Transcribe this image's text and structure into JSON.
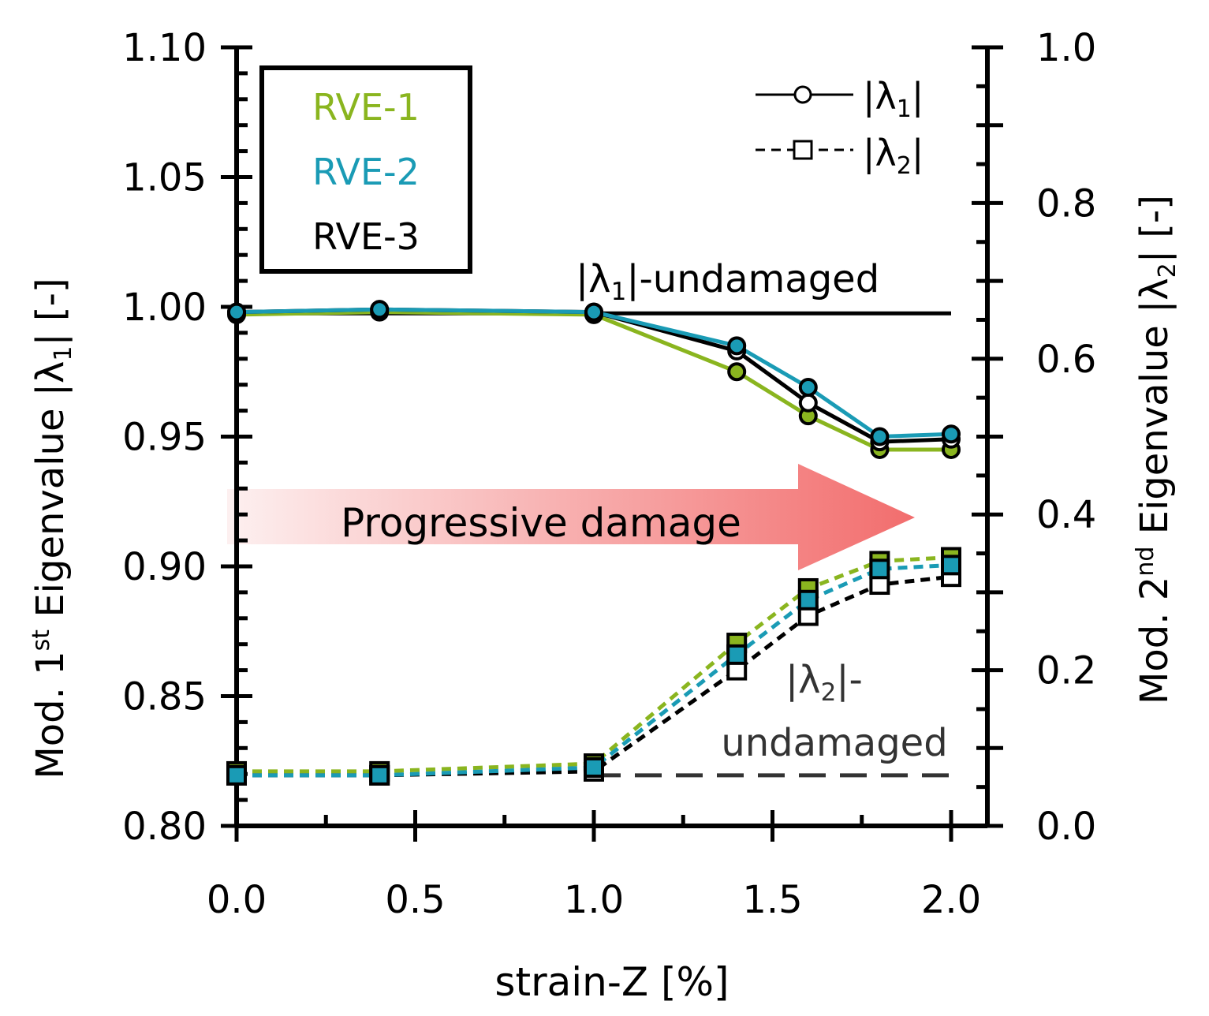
{
  "chart_data": {
    "type": "line",
    "xlabel": "strain-Z [%]",
    "xlim": [
      0.0,
      2.1
    ],
    "x_ticks": [
      0.0,
      0.5,
      1.0,
      1.5,
      2.0
    ],
    "x_tick_labels": [
      "0.0",
      "0.5",
      "1.0",
      "1.5",
      "2.0"
    ],
    "left_axis": {
      "label_prefix": "Mod. 1",
      "label_sup": "st",
      "label_suffix": " Eigenvalue  |λ",
      "label_sub": "1",
      "label_end": "|  [-]",
      "ylim": [
        0.8,
        1.1
      ],
      "ticks": [
        0.8,
        0.85,
        0.9,
        0.95,
        1.0,
        1.05,
        1.1
      ],
      "tick_labels": [
        "0.80",
        "0.85",
        "0.90",
        "0.95",
        "1.00",
        "1.05",
        "1.10"
      ]
    },
    "right_axis": {
      "label_prefix": "Mod. 2",
      "label_sup": "nd",
      "label_suffix": " Eigenvalue  |λ",
      "label_sub": "2",
      "label_end": "|  [-]",
      "ylim": [
        0.0,
        1.0
      ],
      "ticks": [
        0.0,
        0.2,
        0.4,
        0.6,
        0.8,
        1.0
      ],
      "tick_labels": [
        "0.0",
        "0.2",
        "0.4",
        "0.6",
        "0.8",
        "1.0"
      ]
    },
    "x": [
      0.0,
      0.4,
      1.0,
      1.4,
      1.6,
      1.8,
      2.0
    ],
    "series": [
      {
        "name": "RVE-1 |λ1|",
        "rve": "RVE-1",
        "axis": "left",
        "marker": "circle",
        "line": "solid",
        "color": "#8ab51f",
        "fill": "#8ab51f",
        "values": [
          0.997,
          0.998,
          0.997,
          0.975,
          0.958,
          0.945,
          0.945
        ]
      },
      {
        "name": "RVE-3 |λ1|",
        "rve": "RVE-3",
        "axis": "left",
        "marker": "circle",
        "line": "solid",
        "color": "#000000",
        "fill": "#ffffff",
        "values": [
          0.998,
          0.999,
          0.998,
          0.983,
          0.963,
          0.948,
          0.949
        ]
      },
      {
        "name": "RVE-2 |λ1|",
        "rve": "RVE-2",
        "axis": "left",
        "marker": "circle",
        "line": "solid",
        "color": "#1a9bb5",
        "fill": "#1a9bb5",
        "values": [
          0.998,
          0.999,
          0.998,
          0.985,
          0.969,
          0.95,
          0.951
        ]
      },
      {
        "name": "RVE-1 |λ2|",
        "rve": "RVE-1",
        "axis": "right",
        "marker": "square",
        "line": "dashed",
        "color": "#8ab51f",
        "fill": "#8ab51f",
        "values": [
          0.07,
          0.07,
          0.08,
          0.235,
          0.305,
          0.34,
          0.345
        ]
      },
      {
        "name": "RVE-3 |λ2|",
        "rve": "RVE-3",
        "axis": "right",
        "marker": "square",
        "line": "dashed",
        "color": "#000000",
        "fill": "#ffffff",
        "values": [
          0.065,
          0.065,
          0.07,
          0.2,
          0.27,
          0.31,
          0.32
        ]
      },
      {
        "name": "RVE-2 |λ2|",
        "rve": "RVE-2",
        "axis": "right",
        "marker": "square",
        "line": "dashed",
        "color": "#1a9bb5",
        "fill": "#1a9bb5",
        "values": [
          0.065,
          0.065,
          0.075,
          0.22,
          0.29,
          0.33,
          0.335
        ]
      }
    ],
    "reference_lines": [
      {
        "name": "|λ1|-undamaged",
        "axis": "left",
        "value": 0.9975,
        "x_range": [
          0.0,
          2.0
        ],
        "style": "solid"
      },
      {
        "name": "|λ2|-undamaged",
        "axis": "right",
        "value": 0.065,
        "x_range": [
          1.0,
          2.0
        ],
        "style": "dashed"
      }
    ],
    "legend_rve": {
      "placement": "top-left",
      "entries": [
        {
          "label": "RVE-1",
          "color": "#8ab51f"
        },
        {
          "label": "RVE-2",
          "color": "#1a9bb5"
        },
        {
          "label": "RVE-3",
          "color": "#000000"
        }
      ]
    },
    "legend_markers": {
      "placement": "top-right",
      "entries": [
        {
          "label_prefix": "|λ",
          "label_sub": "1",
          "label_end": "|",
          "marker": "circle",
          "line": "solid"
        },
        {
          "label_prefix": "|λ",
          "label_sub": "2",
          "label_end": "|",
          "marker": "square",
          "line": "dashed"
        }
      ]
    },
    "annotations": {
      "lambda1_ref": {
        "prefix": "|λ",
        "sub": "1",
        "end": "|-undamaged"
      },
      "lambda2_ref": {
        "prefix": "|λ",
        "sub": "2",
        "end": "|-",
        "line2": "undamaged"
      },
      "arrow_label": "Progressive damage",
      "arrow_color": "#f26d6d"
    }
  }
}
